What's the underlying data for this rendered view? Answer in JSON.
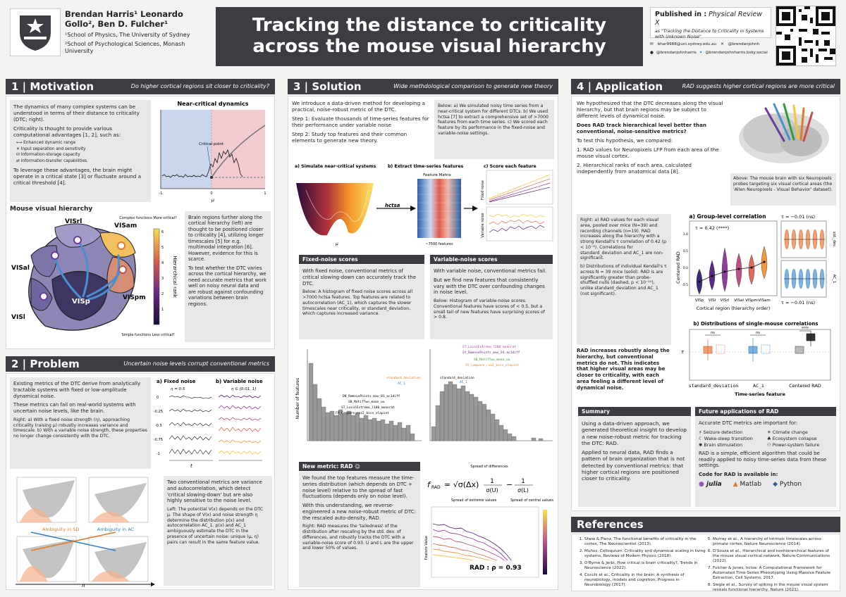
{
  "header": {
    "authors": "Brendan Harris¹ Leonardo Gollo², Ben D. Fulcher¹",
    "affil1": "¹School of Physics, The University of Sydney",
    "affil2": "²School of Psychological Sciences, Monash University",
    "title_line1": "Tracking the distance to criticality",
    "title_line2": "across the mouse visual hierarchy",
    "published_label": "Published in :",
    "journal": "Physical Review X",
    "published_as": "as \"Tracking the Distance to Criticality in Systems with Unknown Noise\"",
    "email": "bhar9988@uni.sydney.edu.au",
    "handle1": "@brendanjohnh",
    "handle2": "@brendanjohnharris",
    "handle3": "@brendanjohnharris.bsky.social"
  },
  "s1": {
    "title": "1 | Motivation",
    "subtitle": "Do higher cortical regions sit closer to criticality?",
    "p1": "The dynamics of many complex systems can be understood in terms of their distance to criticality (DTC; right).",
    "p2": "Criticality is thought to provide various computational advantages [1, 2], such as:",
    "adv": [
      "Enhanced dynamic range",
      "Input separation and sensitivity",
      "Information-storage capacity",
      "Information-transfer capabilities."
    ],
    "p3": "To leverage these advantages, the brain might operate in a critical state [3] or fluctuate around a critical threshold [4].",
    "plot_title": "Near-critical dynamics",
    "critical_point": "Critical point",
    "hier_title": "Mouse visual hierarchy",
    "areas": [
      "VISrl",
      "VISam",
      "VISal",
      "VISp",
      "VISpm",
      "VISl"
    ],
    "rank_label": "Hierarchical rank",
    "complex": "Complex functions More critical?",
    "simple": "Simple functions Less critical?",
    "p4": "Brain regions further along the cortical hierarchy (left) are thought to be positioned closer to criticality [4], utilizing longer timescales [5] for e.g. multimodal integration [6]. However, evidence for this is scarce.",
    "p5": "To test whether the DTC varies across the cortical hierarchy, we need accurate metrics that work well on noisy neural data and are robust against confounding variations between brain regions."
  },
  "s2": {
    "title": "2 | Problem",
    "subtitle": "Uncertain noise levels corrupt conventional metrics",
    "p1": "Existing metrics of the DTC derive from analytically tractable systems with fixed or low-amplitude dynamical noise.",
    "p2": "These metrics can fail on real-world systems with uncertain noise levels, like the brain.",
    "p3": "Right: a) With a fixed noise strength (η), approaching criticality (raising μ) robustly increases variance and timescale. b) With a variable noise strength, these properties no longer change consistently with the DTC.",
    "fig_a": "a) Fixed noise",
    "fig_b": "b) Variable noise",
    "eta_a": "η = 0.5",
    "eta_b": "η ∈ [0.01, 1]",
    "yticks": [
      "0",
      "-0.25",
      "-0.5",
      "-0.75",
      "-1"
    ],
    "p4": "Two conventional metrics are variance and autocorrelation, which detect 'critical slowing-down' but are also highly sensitive to the noise level.",
    "p5": "Left: The potential V(x) depends on the DTC μ. The shape of V(x) and noise strength η determine the distribution p(x) and autocorrelation AC_1. p(x) and AC_1 ambiguously estimate the DTC in the presence of uncertain noise: unique (μ, η) pairs can result in the same feature value.",
    "amb_sd": "Ambiguity in SD",
    "amb_ac": "Ambiguity in AC",
    "eta": "η",
    "mu": "μ"
  },
  "s3": {
    "title": "3 | Solution",
    "subtitle": "Wide methdological comparison to generate new theory",
    "p1": "We introduce a data-driven method for developing a practical, noise-robust metric of the DTC.",
    "step1": "Step 1: Evaluate thousands of time-series features for their performance under variable noise",
    "step2": "Step 2: Study top features and their common elements to generate new theory.",
    "below": "Below: a) We simulated noisy time series from a near-critical system for different DTCs. b) We used hctsa [7] to extract a comprehensive set of >7000 features from each time series. c) We scored each feature by its performance in the fixed-noise and variable-noise settings.",
    "fa": "a) Simulate near-critical systems",
    "fb": "b) Extract time-series features",
    "fc": "c) Score each feature",
    "feat_matrix": "Feature Matrix",
    "hctsa": "hctsa",
    "n_feat": "~7500 features",
    "fixed_hdr": "Fixed-noise scores",
    "fixed_p1": "With fixed noise, conventional metrics of critical slowing-down can accurately track the DTC.",
    "fixed_p2": "Below: A histogram of fixed noise scores across all >7000 hctsa features. Top features are related to autocorrelation (AC_1), which captures the slower timescales near criticality, or standard_deviation, which captures increased variance.",
    "var_hdr": "Variable-noise scores",
    "var_p1": "With variable noise, conventional metrics fail.",
    "var_p2": "But we find new features that consistently vary with the DTC over confounding changes in noise level.",
    "var_p3": "Below: Histogram of variable-noise scores. Conventional features have scores of < 0.5, but a small tail of new features have surprising scores of > 0.8.",
    "hist_ylabel": "Number of features",
    "hist_labels": [
      "standard_deviation",
      "AC_1",
      "DN_RemovePoints_max_01_ac1diff",
      "SB_MotifTwo_mean_uu",
      "ST_LocalExtrema_l100_meanrat",
      "FP_Compare_rzz2_kscn_olapint"
    ],
    "hist2_labels": [
      "standard_deviation",
      "AC_1",
      "ST_LocalExtrema_l100_meanrat",
      "SY_RemovePoints_max_01_ac1diff",
      "SB_MotifTwo_mean_uu",
      "SY_Compare_rzz2_kscn_olapint"
    ],
    "rad_hdr": "New metric: RAD",
    "rad_p1": "We found the top features measure the time-series distribution (which depends on DTC + noise level) relative to the spread of fast fluctuations (depends only on noise level).",
    "rad_p2": "With this understanding, we reverse-engineered a new noise-robust metric of DTC: the rescaled auto-density, RAD.",
    "rad_p3": "Right: RAD measures the 'tailedness' of the distribution after rescaling by the std. dev. of differences, and robustly tracks the DTC with a variable-noise score of 0.93. U and L are the upper and lower 50% of values.",
    "spread_diff": "Spread of differences",
    "spread_ext": "Spread of extreme values",
    "spread_cen": "Spread of central values",
    "rad_score": "RAD : ρ = 0.93",
    "feature_value": "Feature Value"
  },
  "s4": {
    "title": "4 | Application",
    "subtitle": "RAD suggests higher cortical regions are more critical",
    "p1": "We hypothesized that the DTC decreases along the visual hierarchy, but that brain regions may be subject to different levels of dynamical noise.",
    "p2": "Does RAD track hierarchical level better than conventional, noise-sensitive metrics?",
    "p3": "To test this hypothesis, we compared:",
    "l1": "RAD values for Neuropixels LFP from each area of the mouse visual cortex.",
    "l2": "Hierarchical ranks of each area, calculated independently from anatomical data [8].",
    "above": "Above: The mouse brain with six Neuropixels probes targeting six visual cortical areas (the 'Allen Neuropixels - Visual Behavior' dataset).",
    "right1": "Right: a) RAD values for each visual area, pooled over mice (N=39) and recording channels (n=19). RAD increases along the hierarchy with a strong Kendall's τ correlation of 0.42 (p < 10⁻⁴). Correlations for standard_deviation and AC_1 are non-significant.",
    "right2": "b) Distributions of individual Kendall's τ across N = 39 mice (solid). RAD is are significantly greater than probe-shuffled nulls (dashed, p < 10⁻¹⁰), unlike standard_deviation and AC_1 (not significant).",
    "conclusion": "RAD increases robustly along the hierarchy, but conventional metrics do not. This indicates that higher visual areas may be closer to criticality, with each area feeling a different level of dynamical noise.",
    "ga_title": "a) Group-level correlation",
    "tau1": "τ = 0.42 (****)",
    "tau2": "τ = −0.01 (ns)",
    "tau3": "τ = −0.01 (ns)",
    "ga_ylabel": "Centered RAD",
    "ga_xlabel": "Cortical region (hierarchy order)",
    "ga_cats": [
      "VISp",
      "VISl",
      "VISrl",
      "VISal",
      "VISpm",
      "VISam"
    ],
    "side_labels": [
      "std._dev.",
      "AC_1"
    ],
    "gb_title": "b) Distributions of single-mouse correlations",
    "gb_cats": [
      "standard_deviation",
      "AC_1",
      "Centered RAD"
    ],
    "gb_xlabel": "Time-series feature",
    "ns": "ns",
    "stars": "****",
    "summary_hdr": "Summary",
    "summary_p1": "Using a data-driven approach, we generated theoretical insight to develop a new noise-robust metric for tracking the DTC: RAD.",
    "summary_p2": "Applied to neural data, RAD finds a pattern of brain organization that is not detected by conventional metrics: that higher cortical regions are positioned closer to criticality.",
    "future_hdr": "Future applications of RAD",
    "future_p1": "Accurate DTC metrics are important for:",
    "apps": [
      "Seizure detection",
      "Climate change",
      "Wake-sleep transition",
      "Ecosystem collapse",
      "Brain stimulation",
      "Power-system failure"
    ],
    "future_p2": "RAD is a simple, efficient algorithm that could be readily applied to noisy time-series data from these settings.",
    "code": "Code for RAD is available in:",
    "langs": [
      "julia",
      "Matlab",
      "Python"
    ]
  },
  "refs": {
    "title": "References",
    "items": [
      "Shew & Plenz, The functional benefits of criticality in the cortex, The Neuroscientist (2013).",
      "Muñoz, Colloquium: Criticality and dynamical scaling in living systems, Reviews of Modern Physics (2018).",
      "O'Byrne & Jerbi, How critical is brain criticality?, Trends in Neuroscience (2022).",
      "Cocchi et al., Criticality in the brain: A synthesis of neurobiology, models and cognition, Progress in Neurobiology (2017).",
      "Murray et al., A hierarchy of intrinsic timescales across primate cortex, Nature Neuroscience (2014).",
      "D'Souza et al., Hierarchical and nonhierarchical features of the mouse visual cortical network, Nature Communications (2022).",
      "Fulcher & Jones, hctsa: A Computational Framework for Automated Time-Series Phenotyping Using Massive Feature Extraction, Cell Systems, 2017.",
      "Siegle et al., Survey of spiking in the mouse visual system reveals functional hierarchy, Nature (2021)."
    ]
  },
  "colors": {
    "dark": "#3b3d43",
    "accent": "#e07b2a",
    "purple": "#6a3d9a",
    "blue": "#2f7fc1"
  }
}
